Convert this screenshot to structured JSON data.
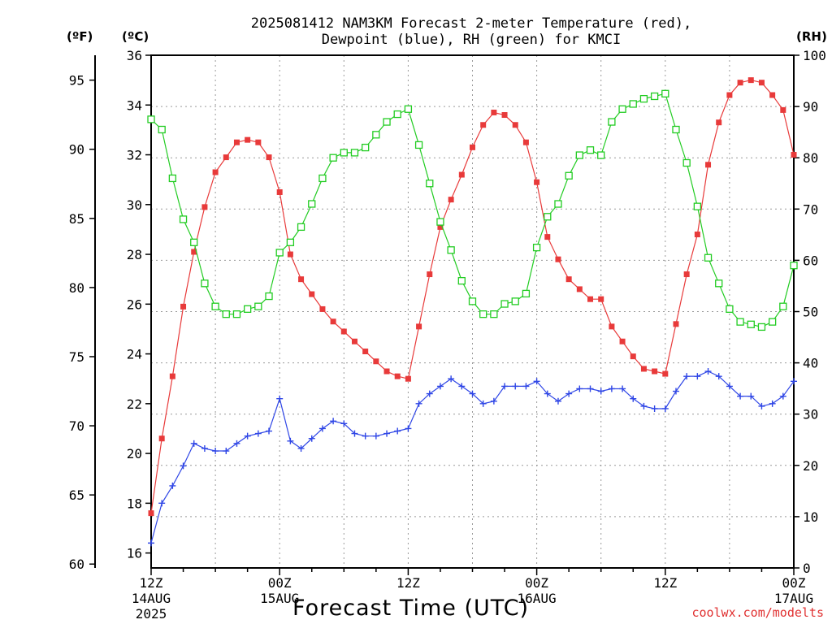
{
  "title": {
    "line1": "2025081412 NAM3KM Forecast 2-meter Temperature (red),",
    "line2": "Dewpoint (blue), RH (green) for KMCI"
  },
  "unit_labels": {
    "fahrenheit": "(ºF)",
    "celsius": "(ºC)",
    "rh": "(RH)"
  },
  "xaxis_title": "Forecast Time (UTC)",
  "credit": "coolwx.com/modelts",
  "colors": {
    "temperature": "#e83a3a",
    "dewpoint": "#2f46e6",
    "rh": "#22cc22",
    "grid": "#999999"
  },
  "chart_data": {
    "type": "line",
    "x_unit": "forecast hour",
    "xlim": [
      0,
      60
    ],
    "ylim_celsius": [
      15.4,
      36.0
    ],
    "ylim_rh": [
      0,
      100
    ],
    "grid": true,
    "celsius_ticks": [
      "16",
      "18",
      "20",
      "22",
      "24",
      "26",
      "28",
      "30",
      "32",
      "34",
      "36"
    ],
    "fahrenheit_ticks": [
      "60",
      "65",
      "70",
      "75",
      "80",
      "85",
      "90",
      "95"
    ],
    "rh_ticks": [
      "0",
      "10",
      "20",
      "30",
      "40",
      "50",
      "60",
      "70",
      "80",
      "90",
      "100"
    ],
    "x_ticks": [
      {
        "hour": 0,
        "line1": "12Z",
        "line2": "14AUG",
        "line3": "2025"
      },
      {
        "hour": 12,
        "line1": "00Z",
        "line2": "15AUG",
        "line3": ""
      },
      {
        "hour": 24,
        "line1": "12Z",
        "line2": "",
        "line3": ""
      },
      {
        "hour": 36,
        "line1": "00Z",
        "line2": "16AUG",
        "line3": ""
      },
      {
        "hour": 48,
        "line1": "12Z",
        "line2": "",
        "line3": ""
      },
      {
        "hour": 60,
        "line1": "00Z",
        "line2": "17AUG",
        "line3": ""
      }
    ],
    "series": [
      {
        "key": "temperature",
        "units": "C",
        "values": [
          17.6,
          20.6,
          23.1,
          25.9,
          28.1,
          29.9,
          31.3,
          31.9,
          32.5,
          32.6,
          32.5,
          31.9,
          30.5,
          28.0,
          27.0,
          26.4,
          25.8,
          25.3,
          24.9,
          24.5,
          24.1,
          23.7,
          23.3,
          23.1,
          23.0,
          25.1,
          27.2,
          29.1,
          30.2,
          31.2,
          32.3,
          33.2,
          33.7,
          33.6,
          33.2,
          32.5,
          30.9,
          28.7,
          27.8,
          27.0,
          26.6,
          26.2,
          26.2,
          25.1,
          24.5,
          23.9,
          23.4,
          23.3,
          23.2,
          25.2,
          27.2,
          28.8,
          31.6,
          33.3,
          34.4,
          34.9,
          35.0,
          34.9,
          34.4,
          33.8,
          32.0
        ]
      },
      {
        "key": "dewpoint",
        "units": "C",
        "values": [
          16.4,
          18.0,
          18.7,
          19.5,
          20.4,
          20.2,
          20.1,
          20.1,
          20.4,
          20.7,
          20.8,
          20.9,
          22.2,
          20.5,
          20.2,
          20.6,
          21.0,
          21.3,
          21.2,
          20.8,
          20.7,
          20.7,
          20.8,
          20.9,
          21.0,
          22.0,
          22.4,
          22.7,
          23.0,
          22.7,
          22.4,
          22.0,
          22.1,
          22.7,
          22.7,
          22.7,
          22.9,
          22.4,
          22.1,
          22.4,
          22.6,
          22.6,
          22.5,
          22.6,
          22.6,
          22.2,
          21.9,
          21.8,
          21.8,
          22.5,
          23.1,
          23.1,
          23.3,
          23.1,
          22.7,
          22.3,
          22.3,
          21.9,
          22.0,
          22.3,
          22.9
        ]
      },
      {
        "key": "rh",
        "units": "%",
        "values": [
          87.5,
          85.5,
          76,
          68,
          63.5,
          55.5,
          51,
          49.5,
          49.5,
          50.5,
          51,
          53,
          61.5,
          63.5,
          66.5,
          71,
          76,
          80,
          81,
          81,
          82,
          84.5,
          87,
          88.5,
          89.5,
          82.5,
          75,
          67.5,
          62,
          56,
          52,
          49.5,
          49.5,
          51.5,
          52,
          53.5,
          62.5,
          68.5,
          71,
          76.5,
          80.5,
          81.5,
          80.5,
          87,
          89.5,
          90.5,
          91.5,
          92,
          92.5,
          85.5,
          79,
          70.5,
          60.5,
          55.5,
          50.5,
          48,
          47.5,
          47,
          48,
          51,
          59
        ]
      }
    ]
  }
}
